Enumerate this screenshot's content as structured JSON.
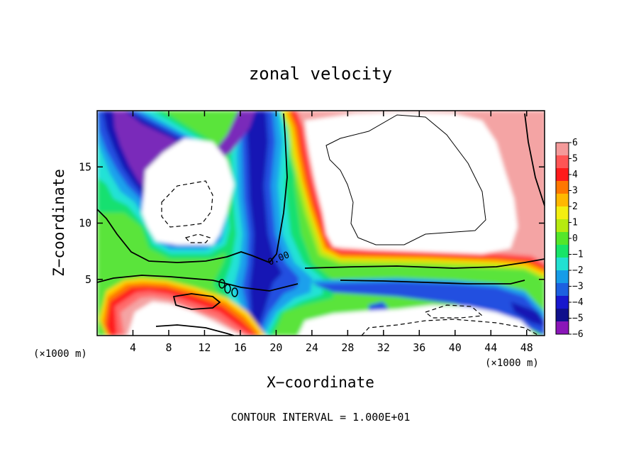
{
  "chart_data": {
    "type": "heatmap",
    "title": "zonal velocity",
    "xlabel": "X−coordinate",
    "ylabel": "Z−coordinate",
    "x_unit_label": "(×1000 m)",
    "y_unit_label": "(×1000 m)",
    "xlim": [
      0,
      50
    ],
    "ylim": [
      0,
      20
    ],
    "x_ticks": [
      4,
      8,
      12,
      16,
      20,
      24,
      28,
      32,
      36,
      40,
      44,
      48
    ],
    "y_ticks": [
      5,
      10,
      15
    ],
    "contour_label": "0.00",
    "footer": "CONTOUR INTERVAL = 1.000E+01",
    "colorbar": {
      "levels": [
        "6",
        "5",
        "4",
        "3",
        "2",
        "1",
        "0",
        "−1",
        "−2",
        "−3",
        "−4",
        "−5",
        "−6"
      ],
      "colors": [
        "#f49a9a",
        "#ff5555",
        "#ff1a1a",
        "#ff7700",
        "#ffb800",
        "#f3ef10",
        "#b6ea10",
        "#54e62a",
        "#18e468",
        "#22e0d2",
        "#169ce8",
        "#1c60e0",
        "#1818ce",
        "#10108c",
        "#8a16b8"
      ]
    },
    "fill_colors": {
      "violet": "#7a2aba",
      "deep_blue": "#1414b4",
      "blue": "#2050e0",
      "sky": "#1fa0ec",
      "cyan": "#20e2d6",
      "teal": "#18e070",
      "green": "#5ae43a",
      "yellow_green": "#b6ea18",
      "yellow": "#ffd400",
      "orange": "#ff7a00",
      "red": "#ff1e1e",
      "salmon": "#ff6a6a",
      "pink": "#f4a4a4"
    }
  }
}
